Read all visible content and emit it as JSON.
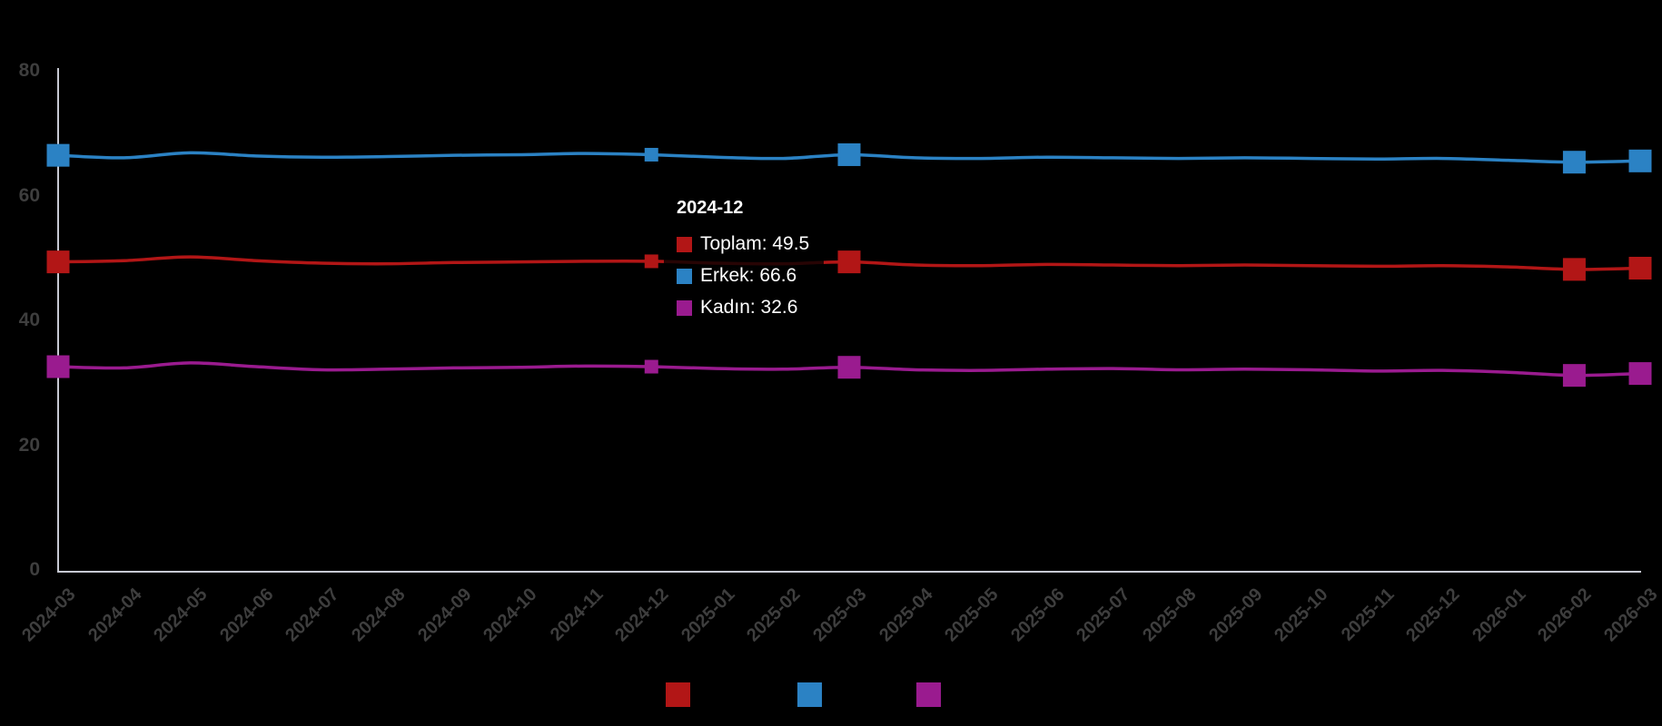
{
  "chart_data": {
    "type": "line",
    "title": "",
    "xlabel": "",
    "ylabel": "",
    "categories": [
      "2024-03",
      "2024-04",
      "2024-05",
      "2024-06",
      "2024-07",
      "2024-08",
      "2024-09",
      "2024-10",
      "2024-11",
      "2024-12",
      "2025-01",
      "2025-02",
      "2025-03",
      "2025-04",
      "2025-05",
      "2025-06",
      "2025-07",
      "2025-08",
      "2025-09",
      "2025-10",
      "2025-11",
      "2025-12",
      "2026-01",
      "2026-02",
      "2026-03"
    ],
    "series": [
      {
        "name": "Toplam",
        "color": "#b21616",
        "values": [
          49.4,
          49.6,
          50.2,
          49.6,
          49.2,
          49.1,
          49.3,
          49.4,
          49.5,
          49.5,
          49.2,
          49.1,
          49.4,
          48.9,
          48.8,
          49.0,
          48.9,
          48.8,
          48.9,
          48.8,
          48.7,
          48.8,
          48.6,
          48.2,
          48.4
        ]
      },
      {
        "name": "Erkek",
        "color": "#2b82c4",
        "values": [
          66.5,
          66.1,
          66.9,
          66.4,
          66.2,
          66.3,
          66.5,
          66.6,
          66.8,
          66.6,
          66.2,
          66.0,
          66.6,
          66.1,
          66.0,
          66.2,
          66.1,
          66.0,
          66.1,
          66.0,
          65.9,
          66.0,
          65.7,
          65.4,
          65.6
        ]
      },
      {
        "name": "Kadın",
        "color": "#9a1b8f",
        "values": [
          32.6,
          32.4,
          33.2,
          32.6,
          32.1,
          32.2,
          32.4,
          32.5,
          32.7,
          32.6,
          32.3,
          32.2,
          32.5,
          32.1,
          32.0,
          32.2,
          32.3,
          32.1,
          32.2,
          32.1,
          31.9,
          32.0,
          31.7,
          31.2,
          31.5
        ]
      }
    ],
    "ylim": [
      0,
      80
    ],
    "y_ticks": [
      {
        "label": "80",
        "value": 80
      },
      {
        "label": "60",
        "value": 60
      },
      {
        "label": "40",
        "value": 40
      },
      {
        "label": "20",
        "value": 20
      },
      {
        "label": "0",
        "value": 0
      }
    ],
    "grid": "off",
    "legend_position": "bottom",
    "big_marker_indices": [
      0,
      12,
      23,
      24
    ],
    "hover_index": 9
  },
  "tooltip": {
    "title": "2024-12",
    "rows": [
      {
        "label": "Toplam",
        "value": "49.5",
        "color": "#b21616"
      },
      {
        "label": "Erkek",
        "value": "66.6",
        "color": "#2b82c4"
      },
      {
        "label": "Kadın",
        "value": "32.6",
        "color": "#9a1b8f"
      }
    ]
  },
  "legend": {
    "items": [
      {
        "label": "Toplam",
        "color": "#b21616"
      },
      {
        "label": "Erkek",
        "color": "#2b82c4"
      },
      {
        "label": "Kadın",
        "color": "#9a1b8f"
      }
    ],
    "label_color": "#000000"
  },
  "colors": {
    "background": "#000000",
    "axis_line": "#c7c9d3",
    "tick_label": "#3e3e3e",
    "tooltip_text": "#ffffff"
  }
}
